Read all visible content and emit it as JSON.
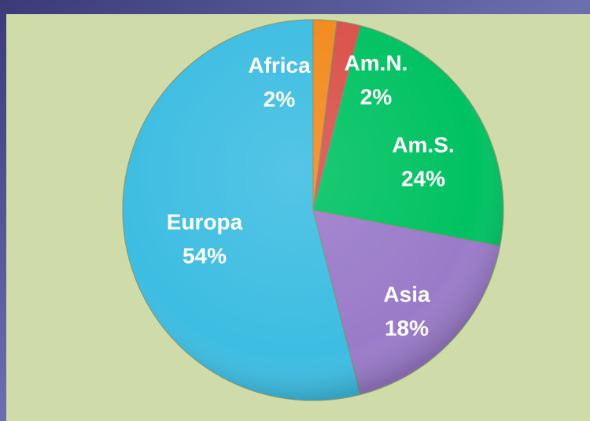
{
  "chart_data": {
    "type": "pie",
    "categories": [
      "Africa",
      "Am.N.",
      "Am.S.",
      "Asia",
      "Europa"
    ],
    "values": [
      2,
      2,
      24,
      18,
      54
    ],
    "value_labels": [
      "2%",
      "2%",
      "24%",
      "18%",
      "54%"
    ],
    "colors": [
      "#f28a1c",
      "#d9514a",
      "#00c262",
      "#9a7bc9",
      "#3dbde2"
    ]
  }
}
